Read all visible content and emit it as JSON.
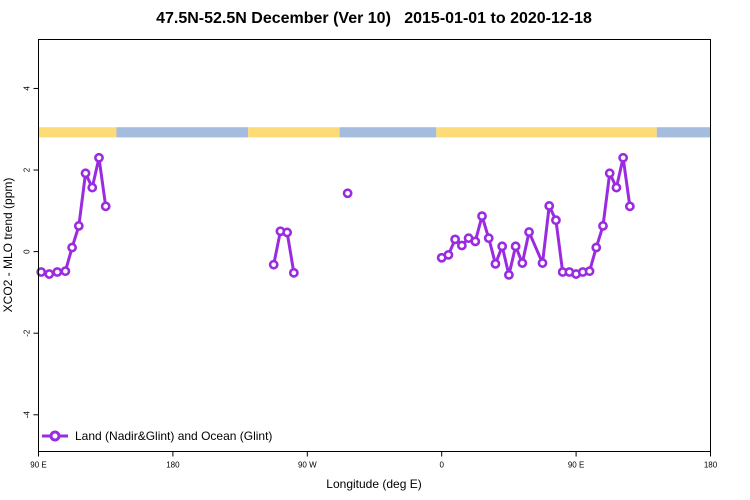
{
  "chart_data": {
    "type": "line",
    "title": "47.5N-52.5N December (Ver 10)   2015-01-01 to 2020-12-18",
    "xlabel": "Longitude (deg E)",
    "ylabel": "XCO2 - MLO trend (ppm)",
    "xlim": [
      90,
      340
    ],
    "ylim": [
      -4.9,
      5.2
    ],
    "x_ticks": [
      {
        "value": 90,
        "label": "90 E"
      },
      {
        "value": 140,
        "label": "180"
      },
      {
        "value": 190,
        "label": "90 W"
      },
      {
        "value": 240,
        "label": "0"
      },
      {
        "value": 290,
        "label": "90 E"
      },
      {
        "value": 340,
        "label": "180"
      }
    ],
    "y_ticks": [
      {
        "value": -4,
        "label": "-4"
      },
      {
        "value": -2,
        "label": "-2"
      },
      {
        "value": 0,
        "label": "0"
      },
      {
        "value": 2,
        "label": "2"
      },
      {
        "value": 4,
        "label": "4"
      }
    ],
    "grid": false,
    "legend": {
      "position": "bottom-left",
      "entries": [
        "Land (Nadir&Glint) and Ocean (Glint)"
      ]
    },
    "colors": {
      "series": "#9b2be0",
      "land": "#fddc77",
      "ocean": "#a4bddf"
    },
    "surface_band": {
      "y_range": [
        2.8,
        3.05
      ],
      "segments": [
        {
          "type": "land",
          "x": [
            90,
            119
          ]
        },
        {
          "type": "ocean",
          "x": [
            119,
            168
          ]
        },
        {
          "type": "land",
          "x": [
            168,
            202
          ]
        },
        {
          "type": "ocean",
          "x": [
            202,
            238
          ]
        },
        {
          "type": "land",
          "x": [
            238,
            320
          ]
        },
        {
          "type": "ocean",
          "x": [
            320,
            340
          ]
        }
      ]
    },
    "series": [
      {
        "name": "Land (Nadir&Glint) and Ocean (Glint)",
        "segments": [
          [
            {
              "x": 91,
              "y": -0.5
            },
            {
              "x": 94,
              "y": -0.55
            },
            {
              "x": 97,
              "y": -0.5
            },
            {
              "x": 100,
              "y": -0.48
            },
            {
              "x": 102.5,
              "y": 0.1
            },
            {
              "x": 105,
              "y": 0.63
            },
            {
              "x": 107.5,
              "y": 1.92
            },
            {
              "x": 110,
              "y": 1.57
            },
            {
              "x": 112.5,
              "y": 2.3
            },
            {
              "x": 115,
              "y": 1.11
            }
          ],
          [
            {
              "x": 177.5,
              "y": -0.32
            },
            {
              "x": 180,
              "y": 0.5
            },
            {
              "x": 182.5,
              "y": 0.47
            },
            {
              "x": 185,
              "y": -0.52
            }
          ],
          [
            {
              "x": 205,
              "y": 1.43
            }
          ],
          [
            {
              "x": 240,
              "y": -0.15
            },
            {
              "x": 242.5,
              "y": -0.08
            },
            {
              "x": 245,
              "y": 0.3
            },
            {
              "x": 247.5,
              "y": 0.15
            },
            {
              "x": 250,
              "y": 0.33
            },
            {
              "x": 252.5,
              "y": 0.25
            },
            {
              "x": 255,
              "y": 0.87
            },
            {
              "x": 257.5,
              "y": 0.33
            },
            {
              "x": 260,
              "y": -0.3
            },
            {
              "x": 262.5,
              "y": 0.13
            },
            {
              "x": 265,
              "y": -0.57
            },
            {
              "x": 267.5,
              "y": 0.13
            },
            {
              "x": 270,
              "y": -0.28
            },
            {
              "x": 272.5,
              "y": 0.48
            },
            {
              "x": 277.5,
              "y": -0.28
            },
            {
              "x": 280,
              "y": 1.12
            },
            {
              "x": 282.5,
              "y": 0.77
            },
            {
              "x": 285,
              "y": -0.5
            },
            {
              "x": 287.5,
              "y": -0.5
            },
            {
              "x": 290,
              "y": -0.55
            },
            {
              "x": 292.5,
              "y": -0.5
            },
            {
              "x": 295,
              "y": -0.48
            },
            {
              "x": 297.5,
              "y": 0.1
            },
            {
              "x": 300,
              "y": 0.63
            },
            {
              "x": 302.5,
              "y": 1.92
            },
            {
              "x": 305,
              "y": 1.57
            },
            {
              "x": 307.5,
              "y": 2.3
            },
            {
              "x": 310,
              "y": 1.11
            }
          ]
        ]
      }
    ]
  }
}
